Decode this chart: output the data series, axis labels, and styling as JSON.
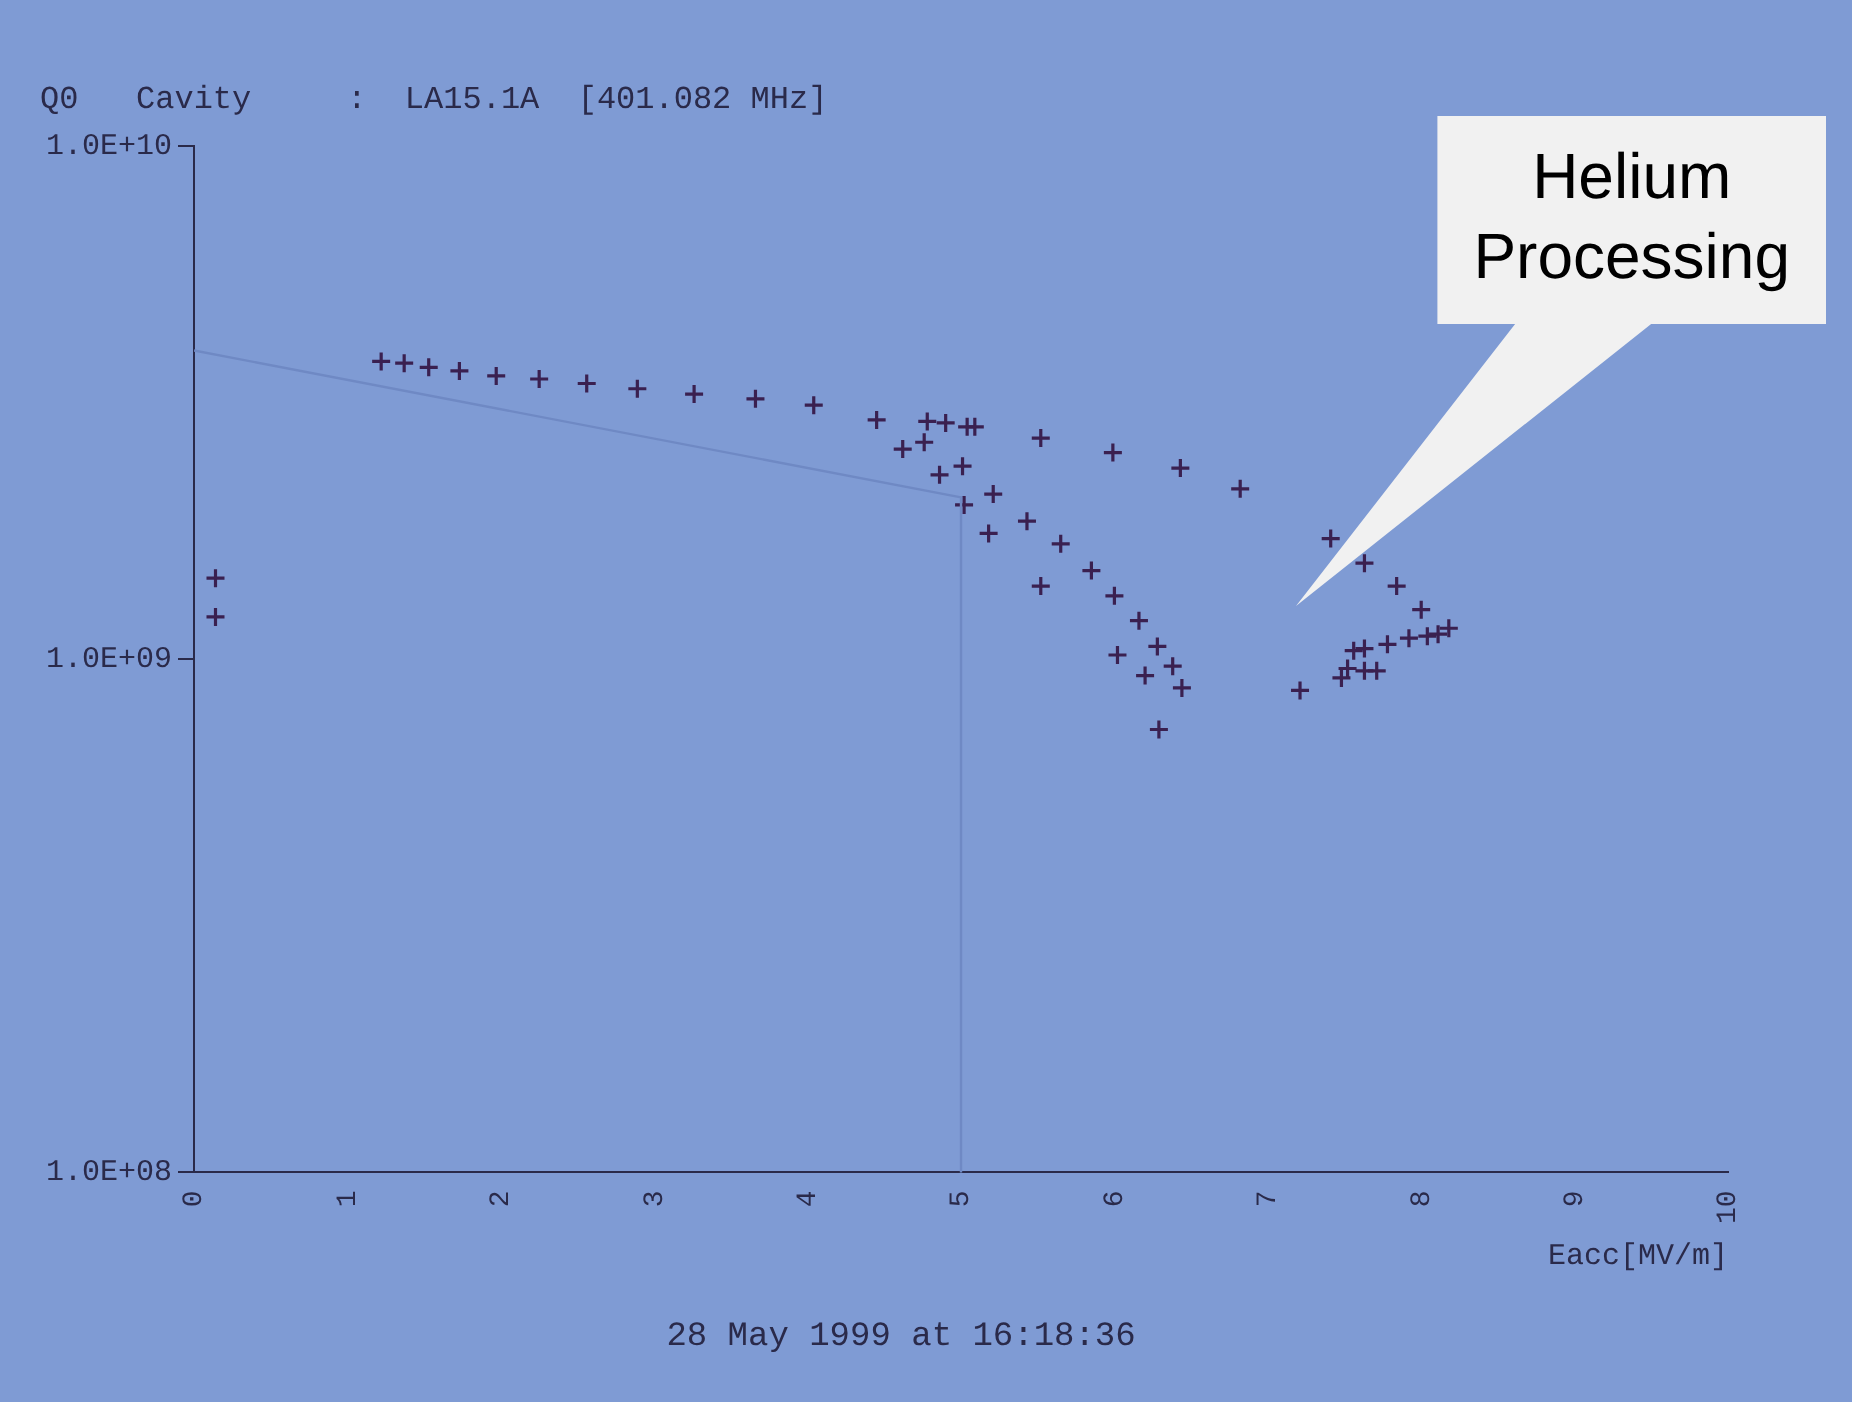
{
  "chart_data": {
    "type": "scatter",
    "title": "Q0   Cavity     :  LA15.1A  [401.082 MHz]",
    "xlabel": "Eacc[MV/m]",
    "xlim": [
      0,
      10
    ],
    "xticks": [
      0,
      1,
      2,
      3,
      4,
      5,
      6,
      7,
      8,
      9,
      10
    ],
    "ylim": [
      100000000,
      10000000000
    ],
    "log": "y",
    "yticks": [
      {
        "value": 100000000,
        "label": "1.0E+08"
      },
      {
        "value": 1000000000,
        "label": "1.0E+09"
      },
      {
        "value": 10000000000,
        "label": "1.0E+10"
      }
    ],
    "grid": false,
    "legend": false,
    "marker": "cross",
    "series": [
      {
        "type": "line",
        "color": "#6f89c4",
        "marker": "none",
        "x": [
          0,
          5,
          5
        ],
        "values": [
          4000000000,
          2070000000,
          100000000
        ]
      },
      {
        "color": "#3a2050",
        "x": [
          1.22,
          1.37,
          1.53,
          1.73,
          1.97,
          2.25,
          2.56,
          2.89,
          3.26,
          3.66,
          4.04,
          4.45,
          4.78,
          4.9,
          5.04,
          5.09,
          4.62,
          4.76,
          4.86,
          5.01,
          5.02,
          5.21,
          5.18,
          5.43,
          0.14,
          0.14,
          5.52,
          5.99,
          6.43,
          6.82,
          7.41,
          7.63,
          7.84,
          8.0,
          5.65,
          5.52,
          5.85,
          6.0,
          6.16,
          6.28,
          6.02,
          6.38,
          6.2,
          6.44,
          6.29,
          7.21,
          7.48,
          7.56,
          7.63,
          7.78,
          7.92,
          8.04,
          8.11,
          8.18,
          7.63,
          7.71,
          7.52
        ],
        "values": [
          3810000000,
          3780000000,
          3710000000,
          3650000000,
          3570000000,
          3520000000,
          3450000000,
          3370000000,
          3290000000,
          3220000000,
          3130000000,
          2930000000,
          2910000000,
          2890000000,
          2840000000,
          2840000000,
          2570000000,
          2650000000,
          2290000000,
          2380000000,
          2000000000,
          2100000000,
          1760000000,
          1860000000,
          1440000000,
          1210000000,
          2700000000,
          2530000000,
          2360000000,
          2150000000,
          1720000000,
          1540000000,
          1390000000,
          1250000000,
          1680000000,
          1390000000,
          1490000000,
          1330000000,
          1190000000,
          1060000000,
          1020000000,
          970000000,
          930000000,
          880000000,
          730000000,
          870000000,
          920000000,
          1040000000,
          1050000000,
          1070000000,
          1100000000,
          1110000000,
          1120000000,
          1150000000,
          950000000,
          950000000,
          960000000
        ]
      }
    ],
    "annotations": [
      "28 May 1999 at 16:18:36",
      "Helium Processing"
    ]
  }
}
